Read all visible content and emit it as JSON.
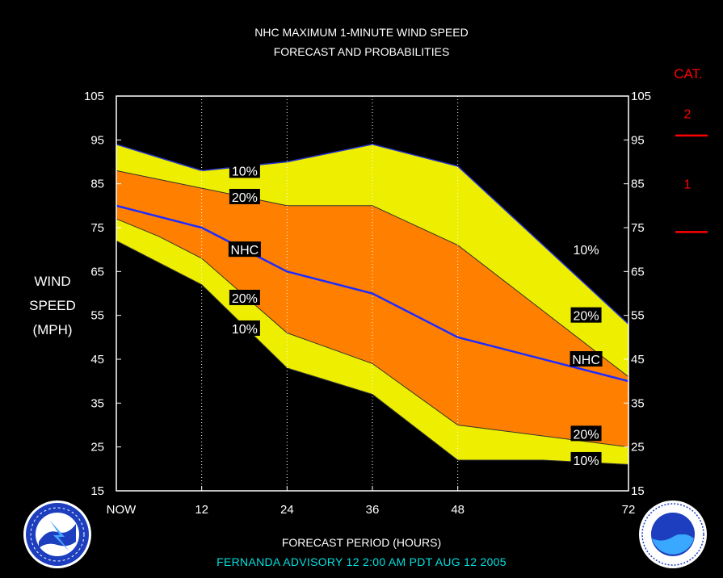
{
  "title": {
    "line1": "NHC MAXIMUM 1-MINUTE WIND SPEED",
    "line2": "FORECAST AND PROBABILITIES"
  },
  "ylabel": {
    "line1": "WIND",
    "line2": "SPEED",
    "line3": "(MPH)"
  },
  "xlabel": "FORECAST PERIOD (HOURS)",
  "advisory": "FERNANDA   ADVISORY  12 2:00 AM PDT AUG 12 2005",
  "category_legend": {
    "title": "CAT.",
    "labels": [
      "2",
      "1"
    ],
    "boundaries": [
      96,
      74
    ],
    "color": "#ff0000"
  },
  "colors": {
    "band_10": "#eeee00",
    "band_20": "#ff8000",
    "nhc_line": "#1e2bff",
    "frame": "#ffffff",
    "advisory_text": "#00e0e0"
  },
  "chart_data": {
    "type": "area",
    "x": [
      0,
      12,
      24,
      36,
      48,
      72
    ],
    "x_tick_labels": [
      "NOW",
      "12",
      "24",
      "36",
      "48",
      "72"
    ],
    "xlim": [
      0,
      72
    ],
    "ylim": [
      15,
      105
    ],
    "y_ticks": [
      15,
      25,
      35,
      45,
      55,
      65,
      75,
      85,
      95,
      105
    ],
    "grid": "vertical dotted",
    "series": [
      {
        "name": "10%",
        "role": "upper",
        "x": [
          0,
          6,
          12,
          24,
          36,
          48,
          72
        ],
        "values": [
          94,
          91,
          88,
          90,
          94,
          89,
          53
        ]
      },
      {
        "name": "20%",
        "role": "upper",
        "x": [
          0,
          12,
          24,
          36,
          48,
          72
        ],
        "values": [
          88,
          84,
          80,
          80,
          71,
          41
        ]
      },
      {
        "name": "NHC",
        "role": "forecast",
        "x": [
          0,
          12,
          24,
          36,
          48,
          72
        ],
        "values": [
          80,
          75,
          65,
          60,
          50,
          40
        ]
      },
      {
        "name": "20%",
        "role": "lower",
        "x": [
          0,
          6,
          12,
          24,
          36,
          48,
          72
        ],
        "values": [
          77,
          73,
          68,
          51,
          44,
          30,
          25
        ]
      },
      {
        "name": "10%",
        "role": "lower",
        "x": [
          0,
          6,
          12,
          24,
          36,
          48,
          60,
          72
        ],
        "values": [
          72,
          67,
          62,
          43,
          37,
          22,
          22,
          21
        ]
      }
    ],
    "annotations": [
      {
        "text": "10%",
        "x": 16,
        "y": 88
      },
      {
        "text": "20%",
        "x": 16,
        "y": 82
      },
      {
        "text": "NHC",
        "x": 16,
        "y": 70
      },
      {
        "text": "20%",
        "x": 16,
        "y": 59
      },
      {
        "text": "10%",
        "x": 16,
        "y": 52
      },
      {
        "text": "10%",
        "x": 64,
        "y": 70
      },
      {
        "text": "20%",
        "x": 64,
        "y": 55
      },
      {
        "text": "NHC",
        "x": 64,
        "y": 45
      },
      {
        "text": "20%",
        "x": 64,
        "y": 28
      },
      {
        "text": "10%",
        "x": 64,
        "y": 22
      }
    ]
  }
}
